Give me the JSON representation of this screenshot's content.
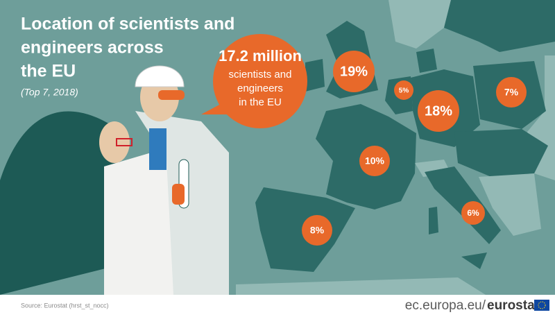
{
  "header": {
    "title_lines": [
      "Location of scientists and",
      "engineers across",
      "the EU"
    ],
    "subtitle": "(Top 7, 2018)"
  },
  "callout": {
    "lines": [
      "17.2 million",
      "scientists and",
      "engineers",
      "in the EU"
    ]
  },
  "map": {
    "labels": [
      "19%",
      "5%",
      "18%",
      "7%",
      "10%",
      "6%",
      "8%"
    ]
  },
  "footer": {
    "source": "Source: Eurostat (hrst_st_nocc)",
    "site": "ec.europa.eu/",
    "brand": "eurostat"
  }
}
